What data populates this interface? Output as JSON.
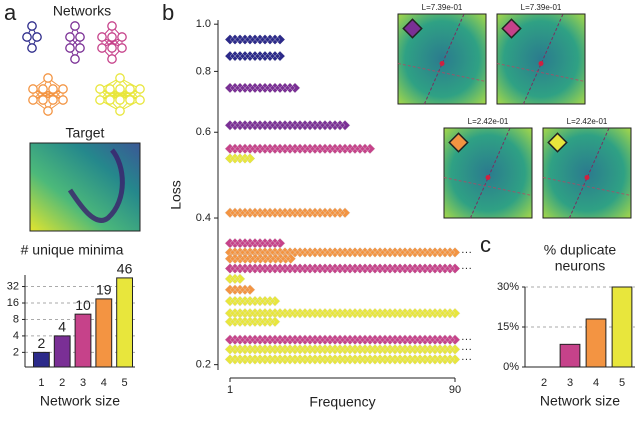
{
  "panel_a": {
    "label": "a",
    "networks_title": "Networks",
    "target_title": "Target"
  },
  "chart_data": [
    {
      "type": "bar",
      "label": "a",
      "title": "# unique minima",
      "xlabel": "Network size",
      "categories": [
        "1",
        "2",
        "3",
        "4",
        "5"
      ],
      "values": [
        2,
        4,
        10,
        19,
        46
      ],
      "colors": [
        "#2c2a8a",
        "#7a2f95",
        "#c6428a",
        "#f39442",
        "#e8e63c"
      ],
      "log_y": true,
      "ylim": [
        1.08,
        52
      ],
      "yticks": [
        2,
        4,
        8,
        16,
        32
      ],
      "grid": true
    },
    {
      "type": "diamond-rows",
      "label": "b",
      "ylabel": "Loss",
      "xlabel": "Frequency",
      "log_y": true,
      "ylim": [
        0.195,
        1.02
      ],
      "yticks": [
        0.2,
        0.4,
        0.6,
        0.8,
        {
          "value": 1,
          "label": "1.0"
        }
      ],
      "xlim": [
        1,
        90
      ],
      "xticks": [
        1,
        90
      ],
      "truncated_label": "···",
      "rows": [
        {
          "loss": 0.93,
          "frequency": 22,
          "color": "#2c2a8a",
          "truncated": false
        },
        {
          "loss": 0.86,
          "frequency": 22,
          "color": "#2c2a8a",
          "truncated": false
        },
        {
          "loss": 0.74,
          "frequency": 28,
          "color": "#7a2f95",
          "truncated": false
        },
        {
          "loss": 0.62,
          "frequency": 48,
          "color": "#7a2f95",
          "truncated": false
        },
        {
          "loss": 0.555,
          "frequency": 58,
          "color": "#c6428a",
          "truncated": false
        },
        {
          "loss": 0.53,
          "frequency": 10,
          "color": "#e8e63c",
          "truncated": false
        },
        {
          "loss": 0.41,
          "frequency": 48,
          "color": "#f39442",
          "truncated": false
        },
        {
          "loss": 0.355,
          "frequency": 22,
          "color": "#c6428a",
          "truncated": false
        },
        {
          "loss": 0.34,
          "frequency": 90,
          "color": "#f39442",
          "truncated": true
        },
        {
          "loss": 0.33,
          "frequency": 25,
          "color": "#f39442",
          "truncated": false
        },
        {
          "loss": 0.315,
          "frequency": 90,
          "color": "#c6428a",
          "truncated": true
        },
        {
          "loss": 0.3,
          "frequency": 6,
          "color": "#e8e63c",
          "truncated": false
        },
        {
          "loss": 0.285,
          "frequency": 10,
          "color": "#f39442",
          "truncated": false
        },
        {
          "loss": 0.27,
          "frequency": 20,
          "color": "#e8e63c",
          "truncated": false
        },
        {
          "loss": 0.255,
          "frequency": 90,
          "color": "#e8e63c",
          "truncated": false
        },
        {
          "loss": 0.245,
          "frequency": 20,
          "color": "#e8e63c",
          "truncated": false
        },
        {
          "loss": 0.225,
          "frequency": 90,
          "color": "#c6428a",
          "truncated": true
        },
        {
          "loss": 0.215,
          "frequency": 90,
          "color": "#e8e63c",
          "truncated": true
        },
        {
          "loss": 0.205,
          "frequency": 90,
          "color": "#e8e63c",
          "truncated": true
        }
      ],
      "insets": [
        {
          "label": "L=7.39e-01",
          "color": "#7a2f95"
        },
        {
          "label": "L=7.39e-01",
          "color": "#c6428a"
        },
        {
          "label": "L=2.42e-01",
          "color": "#f39442"
        },
        {
          "label": "L=2.42e-01",
          "color": "#e8e63c"
        }
      ]
    },
    {
      "type": "bar",
      "label": "c",
      "title_lines": [
        "% duplicate",
        "neurons"
      ],
      "xlabel": "Network size",
      "categories": [
        "2",
        "3",
        "4",
        "5"
      ],
      "values": [
        0,
        8.5,
        18,
        30
      ],
      "colors": [
        "#7a2f95",
        "#c6428a",
        "#f39442",
        "#e8e63c"
      ],
      "ylim": [
        0,
        30
      ],
      "yticks": [
        {
          "value": 0,
          "label": "0%"
        },
        {
          "value": 15,
          "label": "15%"
        },
        {
          "value": 30,
          "label": "30%"
        }
      ],
      "grid": true
    }
  ]
}
